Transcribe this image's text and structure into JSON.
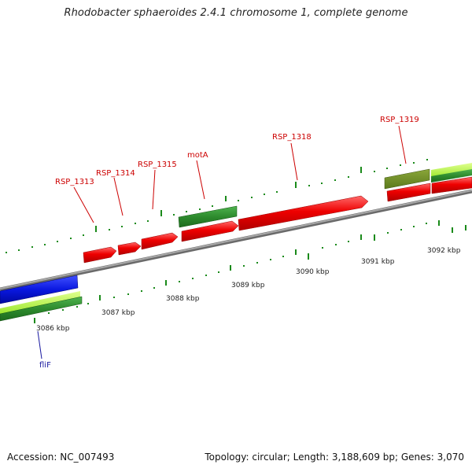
{
  "title": "Rhodobacter sphaeroides 2.4.1 chromosome 1, complete genome",
  "footer": {
    "accession": "Accession: NC_007493",
    "summary": "Topology: circular; Length: 3,188,609 bp; Genes: 3,070"
  },
  "scale_labels": [
    "3086 kbp",
    "3087 kbp",
    "3088 kbp",
    "3089 kbp",
    "3090 kbp",
    "3091 kbp",
    "3092 kbp"
  ],
  "gene_labels": [
    {
      "text": "RSP_1313",
      "color": "#cc0000"
    },
    {
      "text": "RSP_1314",
      "color": "#cc0000"
    },
    {
      "text": "RSP_1315",
      "color": "#cc0000"
    },
    {
      "text": "motA",
      "color": "#cc0000"
    },
    {
      "text": "RSP_1318",
      "color": "#cc0000"
    },
    {
      "text": "RSP_1319",
      "color": "#cc0000"
    },
    {
      "text": "fliF",
      "color": "#1a1aa0"
    }
  ],
  "colors": {
    "backbone": "#8c8c8c",
    "gene_forward": "#ee0000",
    "gene_reverse_green": "#2e8b2e",
    "gene_olive": "#6b8e23",
    "gene_blue": "#0a18e0",
    "light_green": "#adff2f",
    "tick": "#1a8a1a"
  }
}
